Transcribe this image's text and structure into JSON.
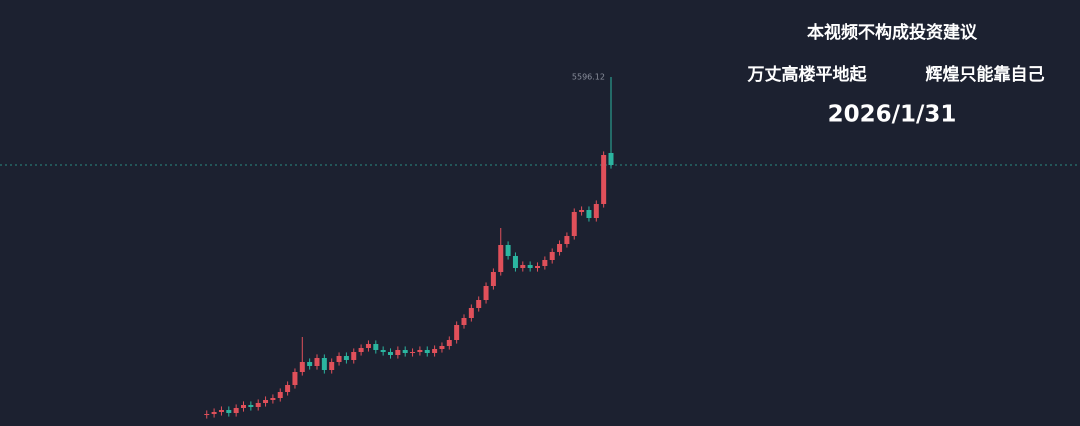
{
  "chart_data": {
    "type": "candlestick",
    "annotations": [
      "本视频不构成投资建议",
      "万丈高楼平地起",
      "辉煌只能靠自己",
      "2026/1/31"
    ],
    "open": [
      3230,
      3237,
      3251,
      3265,
      3244,
      3279,
      3300,
      3286,
      3314,
      3335,
      3349,
      3391,
      3440,
      3531,
      3601,
      3573,
      3629,
      3545,
      3601,
      3643,
      3615,
      3671,
      3699,
      3727,
      3685,
      3671,
      3650,
      3685,
      3664,
      3671,
      3685,
      3664,
      3692,
      3713,
      3755,
      3860,
      3909,
      3979,
      4035,
      4133,
      4231,
      4420,
      4343,
      4259,
      4280,
      4259,
      4273,
      4315,
      4371,
      4427,
      4483,
      4651,
      4665,
      4609,
      4707,
      5064
    ],
    "high": [
      3262,
      3276,
      3290,
      3290,
      3304,
      3325,
      3325,
      3339,
      3360,
      3374,
      3416,
      3465,
      3556,
      3776,
      3626,
      3654,
      3654,
      3626,
      3668,
      3668,
      3696,
      3724,
      3752,
      3752,
      3710,
      3696,
      3710,
      3710,
      3696,
      3710,
      3710,
      3717,
      3738,
      3780,
      3885,
      3934,
      4004,
      4060,
      4158,
      4256,
      4539,
      4445,
      4368,
      4305,
      4305,
      4298,
      4340,
      4396,
      4452,
      4508,
      4676,
      4690,
      4690,
      4732,
      5075,
      5596.12
    ],
    "low": [
      3205,
      3212,
      3226,
      3219,
      3219,
      3254,
      3261,
      3261,
      3289,
      3310,
      3324,
      3366,
      3415,
      3506,
      3548,
      3548,
      3520,
      3520,
      3576,
      3590,
      3590,
      3646,
      3674,
      3660,
      3646,
      3625,
      3625,
      3639,
      3639,
      3646,
      3639,
      3639,
      3667,
      3688,
      3730,
      3835,
      3884,
      3954,
      4010,
      4108,
      4206,
      4318,
      4234,
      4234,
      4234,
      4234,
      4248,
      4290,
      4346,
      4402,
      4458,
      4626,
      4584,
      4584,
      4682,
      4955
    ],
    "close": [
      3237,
      3251,
      3265,
      3244,
      3279,
      3300,
      3286,
      3314,
      3335,
      3349,
      3391,
      3440,
      3531,
      3601,
      3573,
      3629,
      3545,
      3601,
      3643,
      3615,
      3671,
      3699,
      3727,
      3685,
      3671,
      3650,
      3685,
      3664,
      3671,
      3685,
      3664,
      3692,
      3713,
      3755,
      3860,
      3909,
      3979,
      4035,
      4133,
      4231,
      4420,
      4343,
      4259,
      4280,
      4259,
      4273,
      4315,
      4371,
      4427,
      4483,
      4651,
      4665,
      4609,
      4707,
      5050,
      4980
    ],
    "ylim": [
      3153,
      6135
    ],
    "up_color": "#e0505a",
    "down_color": "#2bb5a0",
    "price_line_color": "#2a8a80"
  }
}
